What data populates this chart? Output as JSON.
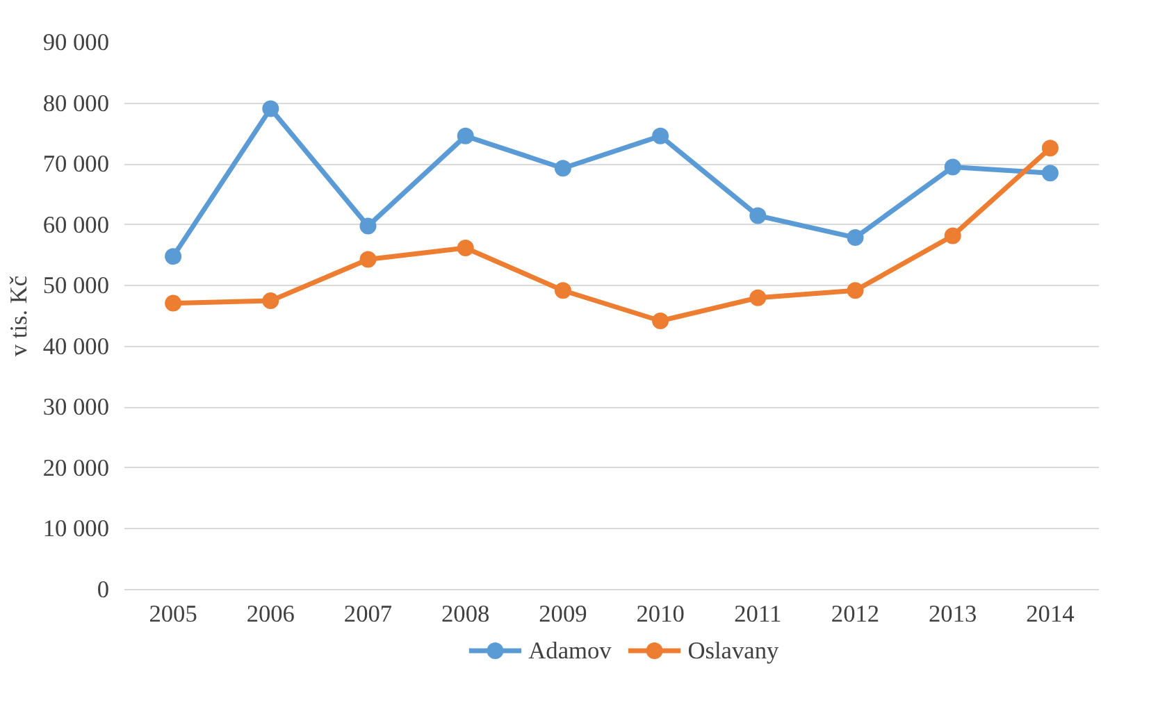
{
  "chart_data": {
    "type": "line",
    "ylabel": "v tis. Kč",
    "categories": [
      "2005",
      "2006",
      "2007",
      "2008",
      "2009",
      "2010",
      "2011",
      "2012",
      "2013",
      "2014"
    ],
    "series": [
      {
        "name": "Adamov",
        "color": "#5b9bd5",
        "values": [
          54800,
          79100,
          59800,
          74600,
          69300,
          74600,
          61500,
          57900,
          69500,
          68500
        ]
      },
      {
        "name": "Oslavany",
        "color": "#ed7d31",
        "values": [
          47100,
          47500,
          54300,
          56200,
          49200,
          44200,
          48000,
          49200,
          58200,
          72600
        ]
      }
    ],
    "ylim": [
      0,
      90000
    ],
    "yticks": [
      0,
      {
        "value": 10000,
        "label": "10 000"
      },
      {
        "value": 20000,
        "label": "20 000"
      },
      {
        "value": 30000,
        "label": "30 000"
      },
      {
        "value": 40000,
        "label": "40 000"
      },
      {
        "value": 50000,
        "label": "50 000"
      },
      {
        "value": 60000,
        "label": "60 000"
      },
      {
        "value": 70000,
        "label": "70 000"
      },
      {
        "value": 80000,
        "label": "80 000"
      },
      {
        "value": 90000,
        "label": "90 000"
      }
    ],
    "grid": "y",
    "legend": "bottom",
    "marker": "circle",
    "line_style": "solid"
  }
}
